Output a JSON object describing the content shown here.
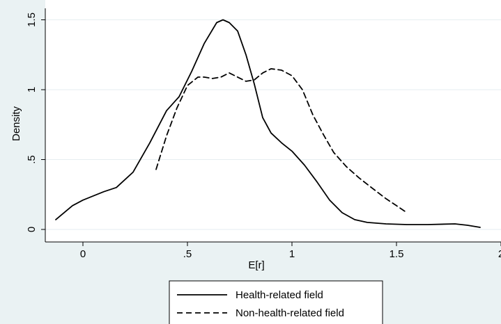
{
  "chart_data": {
    "type": "line",
    "title": "",
    "xlabel": "E[r]",
    "ylabel": "Density",
    "xlim": [
      -0.15,
      2.0
    ],
    "ylim": [
      0,
      1.5
    ],
    "x_ticks": [
      0,
      0.5,
      1,
      1.5,
      2
    ],
    "x_tick_labels": [
      "0",
      ".5",
      "1",
      "1.5",
      "2"
    ],
    "y_ticks": [
      0,
      0.5,
      1,
      1.5
    ],
    "y_tick_labels": [
      "0",
      ".5",
      "1",
      "1.5"
    ],
    "grid": "horizontal",
    "legend_position": "bottom",
    "series": [
      {
        "name": "Health-related field",
        "style": "solid",
        "color": "#000000",
        "x": [
          -0.13,
          -0.05,
          0.0,
          0.1,
          0.16,
          0.24,
          0.32,
          0.4,
          0.46,
          0.52,
          0.58,
          0.64,
          0.67,
          0.7,
          0.74,
          0.78,
          0.82,
          0.86,
          0.9,
          0.95,
          1.0,
          1.06,
          1.12,
          1.18,
          1.24,
          1.3,
          1.36,
          1.45,
          1.55,
          1.65,
          1.78,
          1.84,
          1.9
        ],
        "y": [
          0.07,
          0.17,
          0.21,
          0.27,
          0.3,
          0.41,
          0.62,
          0.85,
          0.95,
          1.13,
          1.33,
          1.48,
          1.5,
          1.48,
          1.42,
          1.25,
          1.04,
          0.8,
          0.69,
          0.62,
          0.56,
          0.46,
          0.34,
          0.21,
          0.12,
          0.07,
          0.05,
          0.04,
          0.035,
          0.035,
          0.04,
          0.03,
          0.015
        ]
      },
      {
        "name": "Non-health-related field",
        "style": "dashed",
        "color": "#000000",
        "x": [
          0.35,
          0.4,
          0.45,
          0.5,
          0.55,
          0.58,
          0.62,
          0.66,
          0.7,
          0.74,
          0.78,
          0.82,
          0.86,
          0.9,
          0.95,
          1.0,
          1.05,
          1.1,
          1.15,
          1.2,
          1.26,
          1.32,
          1.38,
          1.45,
          1.5,
          1.55
        ],
        "y": [
          0.43,
          0.67,
          0.87,
          1.03,
          1.09,
          1.09,
          1.08,
          1.09,
          1.12,
          1.09,
          1.06,
          1.07,
          1.12,
          1.15,
          1.14,
          1.1,
          1.0,
          0.82,
          0.68,
          0.55,
          0.45,
          0.37,
          0.3,
          0.22,
          0.17,
          0.12
        ]
      }
    ]
  }
}
